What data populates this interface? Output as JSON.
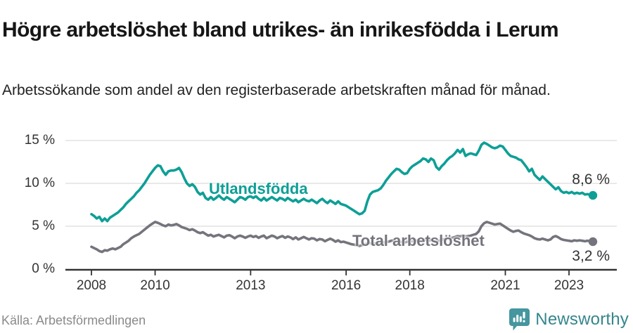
{
  "header": {
    "title": "Högre arbetslöshet bland utrikes- än inrikesfödda i Lerum",
    "subtitle": "Arbetssökande som andel av den registerbaserade arbetskraften månad för månad."
  },
  "footer": {
    "source": "Källa: Arbetsförmedlingen",
    "brand": "Newsworthy"
  },
  "colors": {
    "teal": "#0d9f96",
    "gray": "#74747c",
    "grid": "#dcdcdc",
    "axis": "#333333",
    "logo": "#45969e"
  },
  "chart_data": {
    "type": "line",
    "title": "Högre arbetslöshet bland utrikes- än inrikesfödda i Lerum",
    "xlabel": "",
    "ylabel": "",
    "x_start": {
      "year": 2008,
      "month": 1
    },
    "x_end": {
      "year": 2023,
      "month": 10
    },
    "x_ticks": [
      2008,
      2010,
      2013,
      2016,
      2018,
      2021,
      2023
    ],
    "y_ticks": [
      {
        "value": 0,
        "label": "0 %"
      },
      {
        "value": 5,
        "label": "5 %"
      },
      {
        "value": 10,
        "label": "10 %"
      },
      {
        "value": 15,
        "label": "15 %"
      }
    ],
    "ylim": [
      0,
      15.5
    ],
    "grid": true,
    "legend_position": "inline-labels",
    "series": [
      {
        "name": "Utlandsfödda",
        "color": "#0d9f96",
        "end_label": "8,6 %",
        "end_value": 8.6,
        "values": [
          6.4,
          6.2,
          5.9,
          6.1,
          5.6,
          5.9,
          5.6,
          6.0,
          6.2,
          6.4,
          6.6,
          6.9,
          7.2,
          7.6,
          7.9,
          8.2,
          8.5,
          8.9,
          9.2,
          9.6,
          10.0,
          10.5,
          11.0,
          11.4,
          11.8,
          12.1,
          12.0,
          11.4,
          11.0,
          11.4,
          11.5,
          11.5,
          11.6,
          11.8,
          11.3,
          10.6,
          10.0,
          9.7,
          9.9,
          9.6,
          9.0,
          8.7,
          8.9,
          8.3,
          8.1,
          8.4,
          8.1,
          8.3,
          8.6,
          8.3,
          8.1,
          8.4,
          8.2,
          8.0,
          7.8,
          8.1,
          8.4,
          8.3,
          8.1,
          8.4,
          8.5,
          8.3,
          8.5,
          8.2,
          8.0,
          8.3,
          8.0,
          8.2,
          8.4,
          8.2,
          8.0,
          8.3,
          8.2,
          8.0,
          8.3,
          8.1,
          7.9,
          8.1,
          7.8,
          8.0,
          8.2,
          8.0,
          7.9,
          8.1,
          7.9,
          7.7,
          8.0,
          8.2,
          7.9,
          7.7,
          8.0,
          7.8,
          7.6,
          7.9,
          7.6,
          7.5,
          7.4,
          7.2,
          7.0,
          6.8,
          6.6,
          6.4,
          6.5,
          6.8,
          7.9,
          8.7,
          9.0,
          9.1,
          9.2,
          9.4,
          9.8,
          10.3,
          10.7,
          11.1,
          11.4,
          11.7,
          11.6,
          11.3,
          11.1,
          11.2,
          11.7,
          12.0,
          12.2,
          12.4,
          12.6,
          12.9,
          12.8,
          12.5,
          12.9,
          12.7,
          11.9,
          11.6,
          12.0,
          12.3,
          12.7,
          13.0,
          13.2,
          13.5,
          13.9,
          13.6,
          14.0,
          13.2,
          13.4,
          13.5,
          13.4,
          13.3,
          13.8,
          14.5,
          14.75,
          14.6,
          14.4,
          14.2,
          14.1,
          14.2,
          14.4,
          14.3,
          13.9,
          13.5,
          13.2,
          13.1,
          13.0,
          12.8,
          12.7,
          12.3,
          11.9,
          11.4,
          11.7,
          11.0,
          10.7,
          10.4,
          10.8,
          10.5,
          10.2,
          9.9,
          9.6,
          9.3,
          9.55,
          9.1,
          8.9,
          9.0,
          8.85,
          9.0,
          8.8,
          8.9,
          8.8,
          8.9,
          8.7,
          8.75,
          8.65,
          8.6
        ]
      },
      {
        "name": "Total arbetslöshet",
        "color": "#74747c",
        "end_label": "3,2 %",
        "end_value": 3.2,
        "values": [
          2.6,
          2.45,
          2.3,
          2.1,
          2.0,
          2.2,
          2.15,
          2.3,
          2.4,
          2.3,
          2.45,
          2.6,
          2.9,
          3.1,
          3.3,
          3.6,
          3.8,
          3.95,
          4.1,
          4.35,
          4.6,
          4.85,
          5.1,
          5.3,
          5.5,
          5.4,
          5.25,
          5.1,
          5.0,
          5.2,
          5.1,
          5.15,
          5.25,
          5.1,
          4.9,
          4.8,
          4.7,
          4.55,
          4.65,
          4.5,
          4.3,
          4.2,
          4.3,
          4.1,
          3.9,
          4.0,
          3.8,
          3.9,
          4.0,
          3.85,
          3.7,
          3.9,
          3.95,
          3.8,
          3.6,
          3.8,
          3.9,
          3.8,
          3.65,
          3.8,
          3.9,
          3.75,
          3.85,
          3.65,
          3.8,
          3.9,
          3.6,
          3.75,
          3.9,
          3.8,
          3.6,
          3.75,
          3.85,
          3.65,
          3.8,
          3.7,
          3.5,
          3.7,
          3.45,
          3.6,
          3.75,
          3.6,
          3.45,
          3.6,
          3.55,
          3.35,
          3.5,
          3.45,
          3.25,
          3.4,
          3.55,
          3.4,
          3.2,
          3.35,
          3.15,
          3.2,
          3.1,
          3.0,
          2.9,
          2.85,
          2.8,
          2.7,
          2.8,
          2.9,
          3.0,
          3.05,
          2.95,
          3.0,
          3.0,
          3.05,
          3.1,
          3.15,
          3.2,
          3.3,
          3.35,
          3.3,
          3.2,
          3.15,
          3.1,
          3.2,
          3.2,
          3.25,
          3.3,
          3.35,
          3.4,
          3.45,
          3.4,
          3.3,
          3.4,
          3.35,
          3.25,
          3.3,
          3.4,
          3.5,
          3.55,
          3.6,
          3.65,
          3.75,
          3.85,
          3.8,
          3.9,
          3.8,
          3.85,
          3.9,
          4.0,
          4.1,
          4.4,
          5.0,
          5.35,
          5.5,
          5.4,
          5.3,
          5.2,
          5.25,
          5.3,
          5.1,
          4.9,
          4.7,
          4.5,
          4.35,
          4.45,
          4.5,
          4.3,
          4.15,
          4.05,
          3.95,
          3.8,
          3.6,
          3.5,
          3.45,
          3.55,
          3.45,
          3.35,
          3.45,
          3.75,
          3.85,
          3.7,
          3.5,
          3.4,
          3.35,
          3.3,
          3.25,
          3.35,
          3.3,
          3.35,
          3.3,
          3.25,
          3.3,
          3.25,
          3.2
        ]
      }
    ]
  }
}
